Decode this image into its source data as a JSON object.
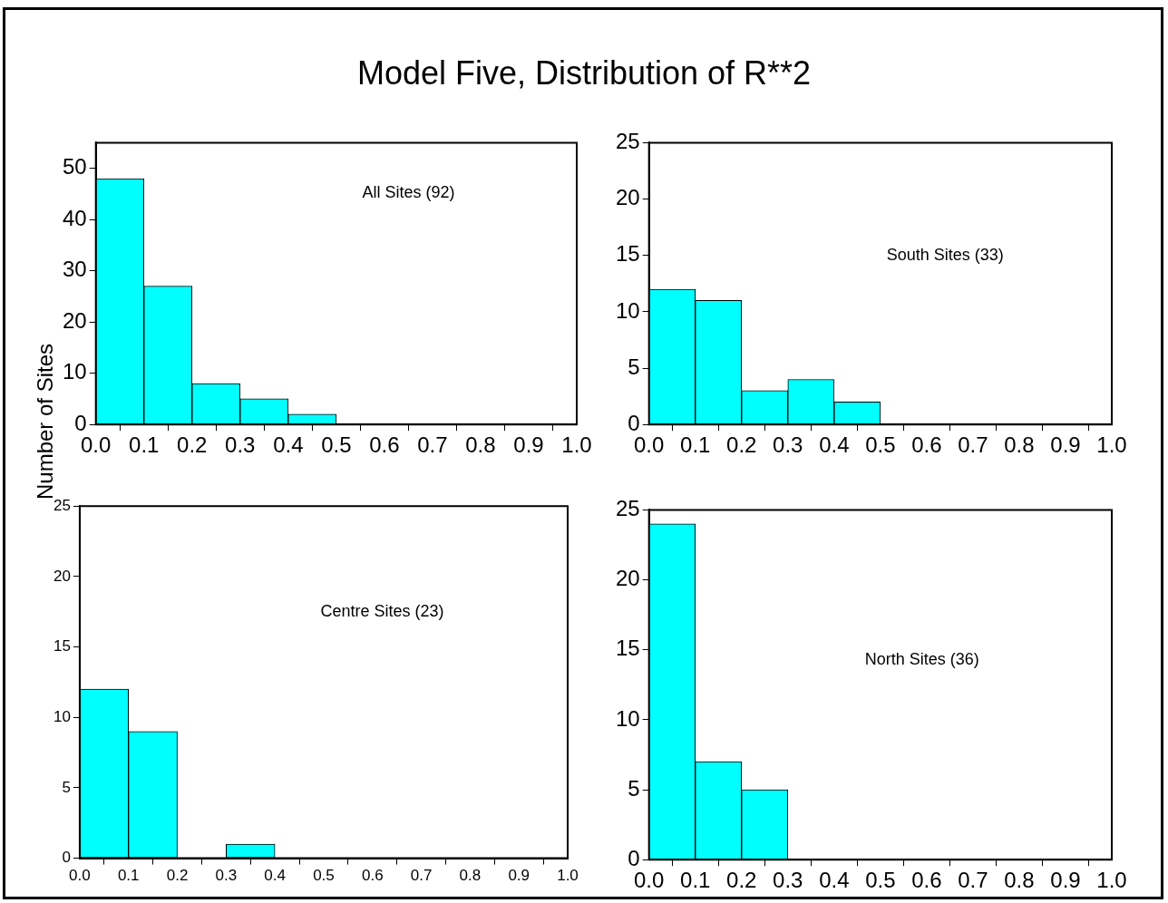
{
  "chart_data": [
    {
      "type": "histogram",
      "title": "Model Five, Distribution of R**2",
      "ylabel": "Number of Sites",
      "annotations": [
        "All Sites (92)"
      ],
      "color": "#00ffff",
      "bins": [
        0,
        0.1,
        0.2,
        0.3,
        0.4,
        0.5,
        0.6,
        0.7,
        0.8,
        0.9,
        1.0
      ],
      "values": [
        48,
        27,
        8,
        5,
        2,
        0,
        0,
        0,
        0,
        0
      ],
      "xlim": [
        0,
        1
      ],
      "xticks": [
        {
          "value": 0,
          "label": "0.0"
        },
        {
          "value": 0.1,
          "label": "0.1"
        },
        {
          "value": 0.2,
          "label": "0.2"
        },
        {
          "value": 0.3,
          "label": "0.3"
        },
        {
          "value": 0.4,
          "label": "0.4"
        },
        {
          "value": 0.5,
          "label": "0.5"
        },
        {
          "value": 0.6,
          "label": "0.6"
        },
        {
          "value": 0.7,
          "label": "0.7"
        },
        {
          "value": 0.8,
          "label": "0.8"
        },
        {
          "value": 0.9,
          "label": "0.9"
        },
        {
          "value": 1,
          "label": "1.0"
        }
      ],
      "ylim": [
        0,
        55
      ],
      "yticks": [
        0,
        10,
        20,
        30,
        40,
        50
      ],
      "grid": false
    },
    {
      "type": "histogram",
      "annotations": [
        "South Sites (33)"
      ],
      "color": "#00ffff",
      "bins": [
        0,
        0.1,
        0.2,
        0.3,
        0.4,
        0.5,
        0.6,
        0.7,
        0.8,
        0.9,
        1.0
      ],
      "values": [
        12,
        11,
        3,
        4,
        2,
        0,
        0,
        0,
        0,
        0
      ],
      "xlim": [
        0,
        1
      ],
      "xticks": [
        {
          "value": 0,
          "label": "0.0"
        },
        {
          "value": 0.1,
          "label": "0.1"
        },
        {
          "value": 0.2,
          "label": "0.2"
        },
        {
          "value": 0.3,
          "label": "0.3"
        },
        {
          "value": 0.4,
          "label": "0.4"
        },
        {
          "value": 0.5,
          "label": "0.5"
        },
        {
          "value": 0.6,
          "label": "0.6"
        },
        {
          "value": 0.7,
          "label": "0.7"
        },
        {
          "value": 0.8,
          "label": "0.8"
        },
        {
          "value": 0.9,
          "label": "0.9"
        },
        {
          "value": 1,
          "label": "1.0"
        }
      ],
      "ylim": [
        0,
        25
      ],
      "yticks": [
        0,
        5,
        10,
        15,
        20,
        25
      ],
      "grid": false
    },
    {
      "type": "histogram",
      "annotations": [
        "Centre Sites (23)"
      ],
      "color": "#00ffff",
      "bins": [
        0,
        0.1,
        0.2,
        0.3,
        0.4,
        0.5,
        0.6,
        0.7,
        0.8,
        0.9,
        1.0
      ],
      "values": [
        12,
        9,
        0,
        1,
        0,
        0,
        0,
        0,
        0,
        0
      ],
      "xlim": [
        0,
        1
      ],
      "xticks": [
        {
          "value": 0,
          "label": "0.0"
        },
        {
          "value": 0.1,
          "label": "0.1"
        },
        {
          "value": 0.2,
          "label": "0.2"
        },
        {
          "value": 0.3,
          "label": "0.3"
        },
        {
          "value": 0.4,
          "label": "0.4"
        },
        {
          "value": 0.5,
          "label": "0.5"
        },
        {
          "value": 0.6,
          "label": "0.6"
        },
        {
          "value": 0.7,
          "label": "0.7"
        },
        {
          "value": 0.8,
          "label": "0.8"
        },
        {
          "value": 0.9,
          "label": "0.9"
        },
        {
          "value": 1,
          "label": "1.0"
        }
      ],
      "ylim": [
        0,
        25
      ],
      "yticks": [
        0,
        5,
        10,
        15,
        20,
        25
      ],
      "grid": false
    },
    {
      "type": "histogram",
      "annotations": [
        "North Sites (36)"
      ],
      "color": "#00ffff",
      "bins": [
        0,
        0.1,
        0.2,
        0.3,
        0.4,
        0.5,
        0.6,
        0.7,
        0.8,
        0.9,
        1.0
      ],
      "values": [
        24,
        7,
        5,
        0,
        0,
        0,
        0,
        0,
        0,
        0
      ],
      "xlim": [
        0,
        1
      ],
      "xticks": [
        {
          "value": 0,
          "label": "0.0"
        },
        {
          "value": 0.1,
          "label": "0.1"
        },
        {
          "value": 0.2,
          "label": "0.2"
        },
        {
          "value": 0.3,
          "label": "0.3"
        },
        {
          "value": 0.4,
          "label": "0.4"
        },
        {
          "value": 0.5,
          "label": "0.5"
        },
        {
          "value": 0.6,
          "label": "0.6"
        },
        {
          "value": 0.7,
          "label": "0.7"
        },
        {
          "value": 0.8,
          "label": "0.8"
        },
        {
          "value": 0.9,
          "label": "0.9"
        },
        {
          "value": 1,
          "label": "1.0"
        }
      ],
      "ylim": [
        0,
        25
      ],
      "yticks": [
        0,
        5,
        10,
        15,
        20,
        25
      ],
      "grid": false
    }
  ]
}
